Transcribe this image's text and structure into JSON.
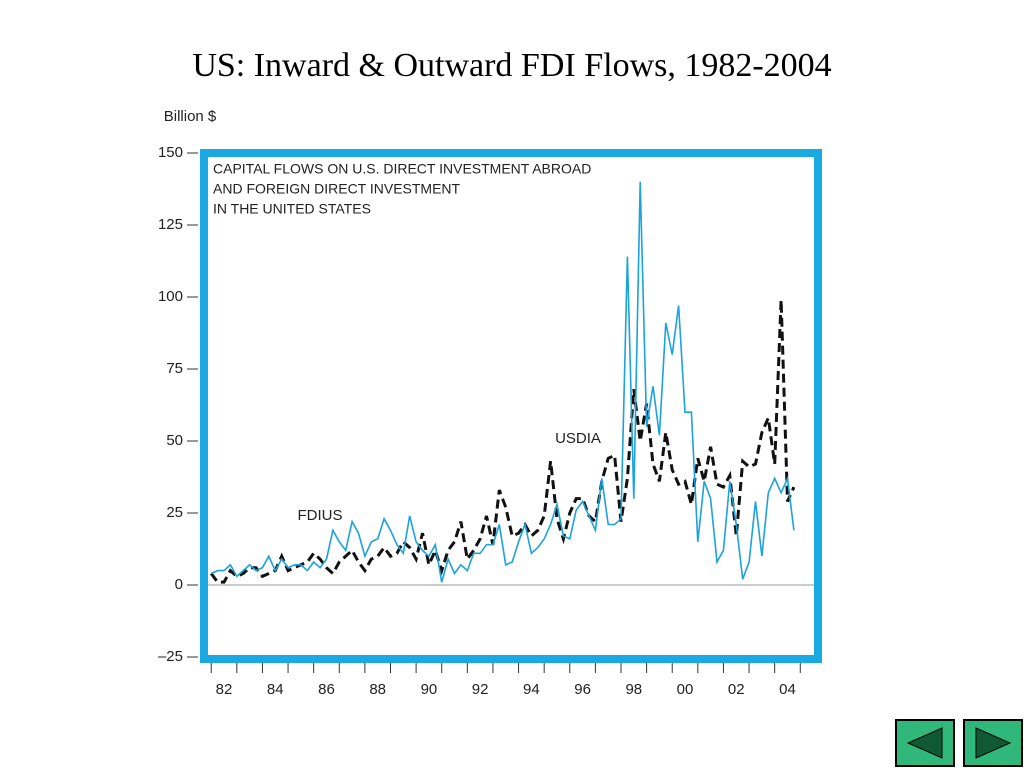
{
  "chart_data": {
    "type": "line",
    "title": "US: Inward & Outward FDI Flows, 1982-2004",
    "y_axis_label": "Billion $",
    "annotation": [
      "CAPITAL FLOWS ON U.S. DIRECT INVESTMENT ABROAD",
      "AND FOREIGN DIRECT INVESTMENT",
      "IN THE UNITED STATES"
    ],
    "x": [
      1982,
      1982.25,
      1982.5,
      1982.75,
      1983,
      1983.25,
      1983.5,
      1983.75,
      1984,
      1984.25,
      1984.5,
      1984.75,
      1985,
      1985.25,
      1985.5,
      1985.75,
      1986,
      1986.25,
      1986.5,
      1986.75,
      1987,
      1987.25,
      1987.5,
      1987.75,
      1988,
      1988.25,
      1988.5,
      1988.75,
      1989,
      1989.25,
      1989.5,
      1989.75,
      1990,
      1990.25,
      1990.5,
      1990.75,
      1991,
      1991.25,
      1991.5,
      1991.75,
      1992,
      1992.25,
      1992.5,
      1992.75,
      1993,
      1993.25,
      1993.5,
      1993.75,
      1994,
      1994.25,
      1994.5,
      1994.75,
      1995,
      1995.25,
      1995.5,
      1995.75,
      1996,
      1996.25,
      1996.5,
      1996.75,
      1997,
      1997.25,
      1997.5,
      1997.75,
      1998,
      1998.25,
      1998.5,
      1998.75,
      1999,
      1999.25,
      1999.5,
      1999.75,
      2000,
      2000.25,
      2000.5,
      2000.75,
      2001,
      2001.25,
      2001.5,
      2001.75,
      2002,
      2002.25,
      2002.5,
      2002.75,
      2003,
      2003.25,
      2003.5,
      2003.75,
      2004,
      2004.25,
      2004.5,
      2004.75
    ],
    "series": [
      {
        "name": "USDIA",
        "color": "#111111",
        "dash": true,
        "values": [
          4,
          1,
          1,
          5,
          3,
          4,
          6,
          6,
          3,
          4,
          5,
          10,
          5,
          6,
          7,
          8,
          11,
          9,
          6,
          4,
          8,
          10,
          12,
          8,
          5,
          9,
          10,
          13,
          10,
          11,
          15,
          13,
          9,
          18,
          7,
          12,
          5,
          12,
          15,
          22,
          9,
          12,
          16,
          24,
          14,
          33,
          27,
          17,
          18,
          21,
          17,
          19,
          24,
          43,
          23,
          16,
          25,
          30,
          30,
          24,
          22,
          36,
          44,
          45,
          22,
          37,
          68,
          50,
          63,
          42,
          36,
          53,
          40,
          35,
          36,
          28,
          44,
          36,
          48,
          35,
          34,
          38,
          17,
          43,
          41,
          42,
          53,
          58,
          42,
          99,
          29,
          34
        ]
      },
      {
        "name": "FDIUS",
        "color": "#1aa3dc",
        "dash": false,
        "values": [
          4,
          5,
          5,
          7,
          3,
          5,
          7,
          5,
          6,
          10,
          5,
          9,
          6,
          7,
          7,
          5,
          8,
          6,
          9,
          19,
          15,
          12,
          22,
          18,
          10,
          15,
          16,
          23,
          19,
          14,
          11,
          24,
          15,
          12,
          10,
          14,
          1,
          9,
          4,
          7,
          5,
          11,
          11,
          14,
          14,
          21,
          7,
          8,
          15,
          21,
          11,
          13,
          16,
          21,
          28,
          17,
          16,
          26,
          29,
          24,
          19,
          37,
          21,
          21,
          23,
          114,
          30,
          140,
          55,
          69,
          52,
          91,
          80,
          97,
          60,
          60,
          15,
          36,
          30,
          8,
          12,
          36,
          21,
          2,
          8,
          29,
          10,
          32,
          37,
          32,
          37,
          19
        ]
      }
    ],
    "xlim": [
      1981.64,
      2005.77
    ],
    "xticks": [
      {
        "value": 1982.5,
        "label": "82"
      },
      {
        "value": 1984.5,
        "label": "84"
      },
      {
        "value": 1986.5,
        "label": "86"
      },
      {
        "value": 1988.5,
        "label": "88"
      },
      {
        "value": 1990.5,
        "label": "90"
      },
      {
        "value": 1992.5,
        "label": "92"
      },
      {
        "value": 1994.5,
        "label": "94"
      },
      {
        "value": 1996.5,
        "label": "96"
      },
      {
        "value": 1998.5,
        "label": "98"
      },
      {
        "value": 2000.5,
        "label": "00"
      },
      {
        "value": 2002.5,
        "label": "02"
      },
      {
        "value": 2004.5,
        "label": "04"
      }
    ],
    "x_minor_ticks": [
      1982,
      1983,
      1984,
      1985,
      1986,
      1987,
      1988,
      1989,
      1990,
      1991,
      1992,
      1993,
      1994,
      1995,
      1996,
      1997,
      1998,
      1999,
      2000,
      2001,
      2002,
      2003,
      2004,
      2005
    ],
    "ylim": [
      -25,
      150
    ],
    "yticks": [
      {
        "value": -25,
        "label": "–25"
      },
      0,
      25,
      50,
      75,
      100,
      125,
      150
    ],
    "zero_line": true,
    "frame_color": "#1aa9e0"
  }
}
